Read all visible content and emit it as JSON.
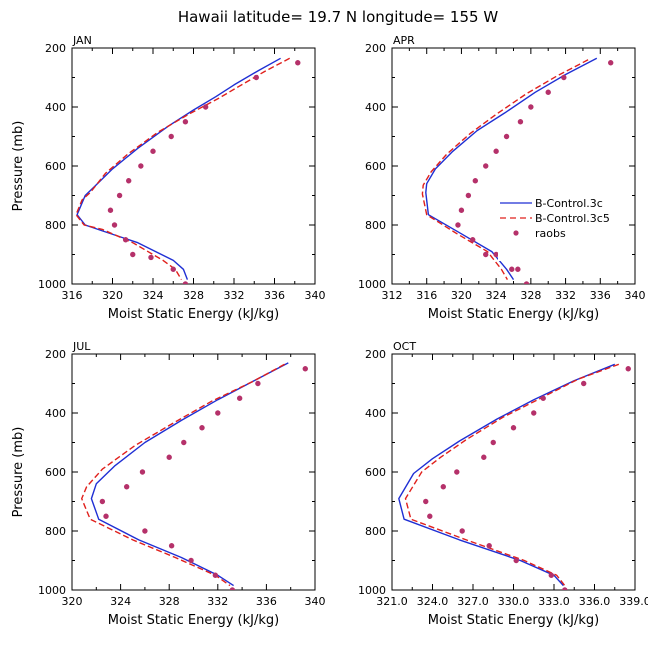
{
  "figure_title": "Hawaii  latitude= 19.7 N longitude= 155 W",
  "legend": {
    "entries": [
      "B-Control.3c",
      "B-Control.3c5",
      "raobs"
    ]
  },
  "colors": {
    "series_1": "#1f2fd4",
    "series_2": "#e0201c",
    "raobs": "#b5316a"
  },
  "chart_data": [
    {
      "type": "line",
      "panel": "JAN",
      "xlabel": "Moist Static Energy (kJ/kg)",
      "ylabel": "Pressure (mb)",
      "xlim": [
        316,
        340
      ],
      "ylim": [
        200,
        1000
      ],
      "xticks": [
        "316",
        "320",
        "324",
        "328",
        "332",
        "336",
        "340"
      ],
      "yticks": [
        "200",
        "400",
        "600",
        "800",
        "1000"
      ],
      "series": [
        {
          "name": "B-Control.3c",
          "style": "solid",
          "x": [
            336.6,
            334.5,
            332.0,
            330.2,
            328.0,
            325.5,
            322.5,
            320.0,
            318.2,
            317.3,
            316.5,
            317.3,
            319.0,
            322.5,
            326.0,
            327.0,
            327.4
          ],
          "y": [
            235,
            275,
            325,
            365,
            410,
            465,
            540,
            610,
            670,
            700,
            765,
            800,
            820,
            860,
            920,
            950,
            985
          ]
        },
        {
          "name": "B-Control.3c5",
          "style": "dashed",
          "x": [
            337.5,
            335.0,
            332.5,
            330.5,
            327.5,
            324.5,
            321.5,
            319.3,
            317.8,
            317.0,
            316.4,
            317.2,
            319.0,
            322.0,
            325.0,
            326.2,
            326.8
          ],
          "y": [
            235,
            280,
            330,
            370,
            425,
            485,
            560,
            625,
            690,
            715,
            765,
            800,
            815,
            860,
            920,
            950,
            985
          ]
        },
        {
          "name": "raobs",
          "style": "markers",
          "x": [
            338.3,
            334.2,
            329.2,
            327.2,
            325.8,
            324.0,
            322.8,
            321.6,
            320.7,
            319.8,
            320.2,
            321.3,
            322.0,
            323.8,
            326.0,
            327.2
          ],
          "y": [
            250,
            300,
            400,
            450,
            500,
            550,
            600,
            650,
            700,
            750,
            800,
            850,
            900,
            910,
            950,
            1000
          ]
        }
      ]
    },
    {
      "type": "line",
      "panel": "APR",
      "xlabel": "Moist Static Energy (kJ/kg)",
      "ylabel": "",
      "xlim": [
        312,
        340
      ],
      "ylim": [
        200,
        1000
      ],
      "xticks": [
        "312",
        "316",
        "320",
        "324",
        "328",
        "332",
        "336",
        "340"
      ],
      "yticks": [
        "200",
        "400",
        "600",
        "800",
        "1000"
      ],
      "series": [
        {
          "name": "B-Control.3c",
          "style": "solid",
          "x": [
            335.6,
            332.0,
            328.5,
            325.0,
            321.8,
            319.0,
            317.0,
            316.0,
            315.9,
            316.2,
            320.0,
            323.5,
            325.2,
            326.0
          ],
          "y": [
            235,
            290,
            350,
            420,
            480,
            550,
            610,
            660,
            690,
            765,
            830,
            890,
            950,
            985
          ]
        },
        {
          "name": "B-Control.3c5",
          "style": "dashed",
          "x": [
            334.6,
            331.0,
            327.5,
            324.0,
            321.0,
            318.3,
            316.5,
            315.6,
            315.5,
            316.0,
            319.5,
            323.0,
            324.6,
            325.3
          ],
          "y": [
            240,
            295,
            355,
            425,
            490,
            560,
            620,
            665,
            695,
            765,
            830,
            890,
            950,
            985
          ]
        },
        {
          "name": "raobs",
          "style": "markers",
          "x": [
            337.2,
            331.8,
            330.0,
            328.0,
            326.8,
            325.2,
            324.0,
            322.8,
            321.6,
            320.8,
            320.0,
            319.6,
            321.3,
            322.8,
            324.0,
            325.8,
            326.5,
            327.5
          ],
          "y": [
            250,
            300,
            350,
            400,
            450,
            500,
            550,
            600,
            650,
            700,
            750,
            800,
            850,
            900,
            900,
            950,
            950,
            1000
          ]
        }
      ]
    },
    {
      "type": "line",
      "panel": "JUL",
      "xlabel": "Moist Static Energy (kJ/kg)",
      "ylabel": "Pressure (mb)",
      "xlim": [
        320,
        340
      ],
      "ylim": [
        200,
        1000
      ],
      "xticks": [
        "320",
        "324",
        "328",
        "332",
        "336",
        "340"
      ],
      "yticks": [
        "200",
        "400",
        "600",
        "800",
        "1000"
      ],
      "series": [
        {
          "name": "B-Control.3c",
          "style": "solid",
          "x": [
            337.8,
            335.0,
            332.0,
            329.0,
            326.0,
            323.5,
            322.0,
            321.6,
            322.2,
            325.5,
            329.0,
            332.0,
            333.3
          ],
          "y": [
            230,
            290,
            355,
            425,
            500,
            580,
            640,
            690,
            760,
            830,
            890,
            950,
            985
          ]
        },
        {
          "name": "B-Control.3c5",
          "style": "dashed",
          "x": [
            337.5,
            334.8,
            331.5,
            328.5,
            325.2,
            322.5,
            321.2,
            320.8,
            321.5,
            325.0,
            328.5,
            331.8,
            333.0
          ],
          "y": [
            235,
            295,
            360,
            430,
            510,
            590,
            650,
            690,
            760,
            830,
            890,
            950,
            985
          ]
        },
        {
          "name": "raobs",
          "style": "markers",
          "x": [
            339.2,
            335.3,
            333.8,
            332.0,
            330.7,
            329.2,
            328.0,
            325.8,
            324.5,
            322.5,
            322.8,
            326.0,
            328.2,
            329.8,
            331.8,
            333.2
          ],
          "y": [
            250,
            300,
            350,
            400,
            450,
            500,
            550,
            600,
            650,
            700,
            750,
            800,
            850,
            900,
            950,
            1000
          ]
        }
      ]
    },
    {
      "type": "line",
      "panel": "OCT",
      "xlabel": "Moist Static Energy (kJ/kg)",
      "ylabel": "",
      "xlim": [
        321,
        339
      ],
      "ylim": [
        200,
        1000
      ],
      "xticks": [
        "321.0",
        "324.0",
        "327.0",
        "330.0",
        "333.0",
        "336.0",
        "339.0"
      ],
      "yticks": [
        "200",
        "400",
        "600",
        "800",
        "1000"
      ],
      "series": [
        {
          "name": "B-Control.3c",
          "style": "solid",
          "x": [
            337.5,
            334.5,
            331.5,
            328.8,
            326.0,
            324.0,
            322.6,
            321.5,
            321.9,
            326.0,
            330.5,
            333.0,
            333.7
          ],
          "y": [
            235,
            290,
            355,
            420,
            495,
            555,
            605,
            690,
            760,
            830,
            900,
            950,
            985
          ]
        },
        {
          "name": "B-Control.3c5",
          "style": "dashed",
          "x": [
            337.8,
            334.8,
            332.0,
            329.2,
            326.5,
            324.6,
            323.2,
            322.0,
            322.4,
            326.5,
            330.8,
            333.2,
            333.8
          ],
          "y": [
            235,
            285,
            350,
            415,
            490,
            550,
            600,
            690,
            760,
            830,
            900,
            950,
            985
          ]
        },
        {
          "name": "raobs",
          "style": "markers",
          "x": [
            338.5,
            335.2,
            332.2,
            331.5,
            330.0,
            328.5,
            327.8,
            325.8,
            324.8,
            323.5,
            323.8,
            326.2,
            328.2,
            330.2,
            332.8,
            333.8
          ],
          "y": [
            250,
            300,
            350,
            400,
            450,
            500,
            550,
            600,
            650,
            700,
            750,
            800,
            850,
            900,
            950,
            1000
          ]
        }
      ]
    }
  ]
}
